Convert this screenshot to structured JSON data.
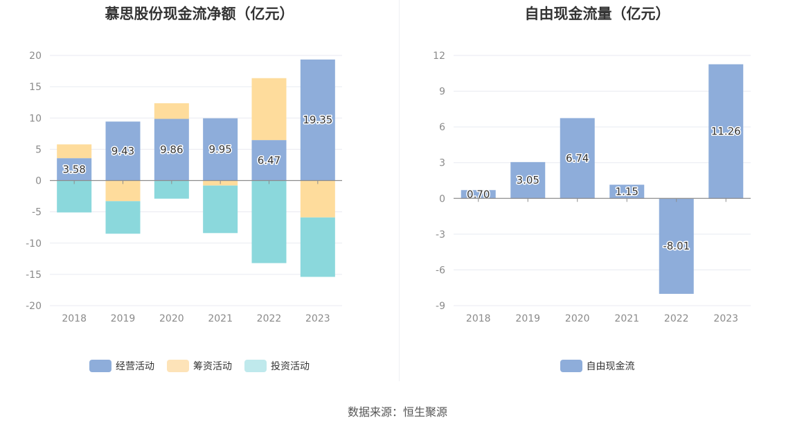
{
  "source_text": "数据来源：恒生聚源",
  "chart_data": [
    {
      "type": "bar",
      "stacked": true,
      "title": "慕思股份现金流净额（亿元）",
      "categories": [
        "2018",
        "2019",
        "2020",
        "2021",
        "2022",
        "2023"
      ],
      "ylim": [
        -20,
        20
      ],
      "yticks": [
        20,
        15,
        10,
        5,
        0,
        -5,
        -10,
        -15,
        -20
      ],
      "grid": true,
      "legend_position": "bottom",
      "series": [
        {
          "name": "经营活动",
          "color": "#8eadda",
          "values": [
            3.58,
            9.43,
            9.86,
            9.95,
            6.47,
            19.35
          ],
          "show_labels": true
        },
        {
          "name": "筹资活动",
          "color": "#fedc9c",
          "values": [
            2.2,
            -3.3,
            2.5,
            -0.8,
            9.9,
            -5.9
          ],
          "show_labels": false
        },
        {
          "name": "投资活动",
          "color": "#8bd8dc",
          "values": [
            -5.1,
            -5.2,
            -2.9,
            -7.6,
            -13.2,
            -9.5
          ],
          "show_labels": false
        }
      ],
      "legend_colors": {
        "经营活动": "#8eadda",
        "筹资活动": "#fde3b8",
        "投资活动": "#bfe9ec"
      }
    },
    {
      "type": "bar",
      "title": "自由现金流量（亿元）",
      "categories": [
        "2018",
        "2019",
        "2020",
        "2021",
        "2022",
        "2023"
      ],
      "ylim": [
        -9,
        12
      ],
      "yticks": [
        12,
        9,
        6,
        3,
        0,
        -3,
        -6,
        -9
      ],
      "grid": true,
      "legend_position": "bottom",
      "series": [
        {
          "name": "自由现金流",
          "color": "#8eadda",
          "values": [
            0.7,
            3.05,
            6.74,
            1.15,
            -8.01,
            11.26
          ],
          "labels": [
            "0.70",
            "3.05",
            "6.74",
            "1.15",
            "-8.01",
            "11.26"
          ]
        }
      ]
    }
  ]
}
